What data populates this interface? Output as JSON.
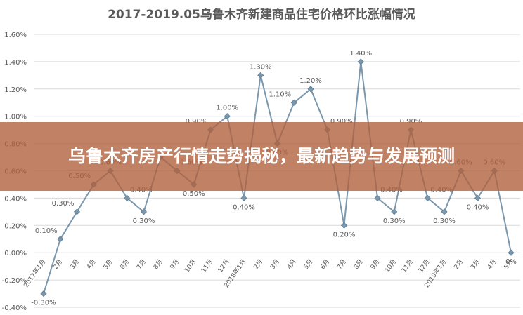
{
  "chart_data": {
    "type": "line",
    "title": "2017-2019.05乌鲁木齐新建商品住宅价格环比涨幅情况",
    "xlabel": "",
    "ylabel": "",
    "ylim": [
      -0.4,
      1.6
    ],
    "y_ticks": [
      "-0.40%",
      "-0.20%",
      "0.00%",
      "0.20%",
      "0.40%",
      "0.60%",
      "0.80%",
      "1.00%",
      "1.20%",
      "1.40%",
      "1.60%"
    ],
    "grid": true,
    "legend": "none",
    "series_color": "#7a97ad",
    "categories": [
      "2017年1月",
      "2月",
      "3月",
      "4月",
      "5月",
      "6月",
      "7月",
      "8月",
      "9月",
      "10月",
      "11月",
      "12月",
      "2018年1月",
      "2月",
      "3月",
      "4月",
      "5月",
      "6月",
      "7月",
      "8月",
      "9月",
      "10月",
      "11月",
      "12月",
      "2019年1月",
      "2月",
      "3月",
      "4月",
      "5月"
    ],
    "series": [
      {
        "values": [
          -0.3,
          0.1,
          0.3,
          0.5,
          0.6,
          0.4,
          0.3,
          0.7,
          0.6,
          0.5,
          0.9,
          1.0,
          0.4,
          1.3,
          0.8,
          1.1,
          1.2,
          0.9,
          0.2,
          1.4,
          0.4,
          0.3,
          0.9,
          0.4,
          0.3,
          0.6,
          0.4,
          0.6,
          0.0
        ],
        "data_labels": [
          "-0.30%",
          "0.10%",
          "0.30%",
          "0.50%",
          "0.60%",
          "0.40%",
          "0.30%",
          "",
          "0.60%",
          "0.50%",
          "0.90%",
          "1.00%",
          "0.40%",
          "1.30%",
          "0.80%",
          "1.10%",
          "1.20%",
          "0.90%",
          "0.20%",
          "1.40%",
          "0.40%",
          "0.30%",
          "0.90%",
          "0.40%",
          "0.30%",
          "0.60%",
          "0.40%",
          "0.60%",
          "0%"
        ]
      }
    ]
  },
  "overlay": {
    "text": "乌鲁木齐房产行情走势揭秘，最新趋势与发展预测"
  }
}
